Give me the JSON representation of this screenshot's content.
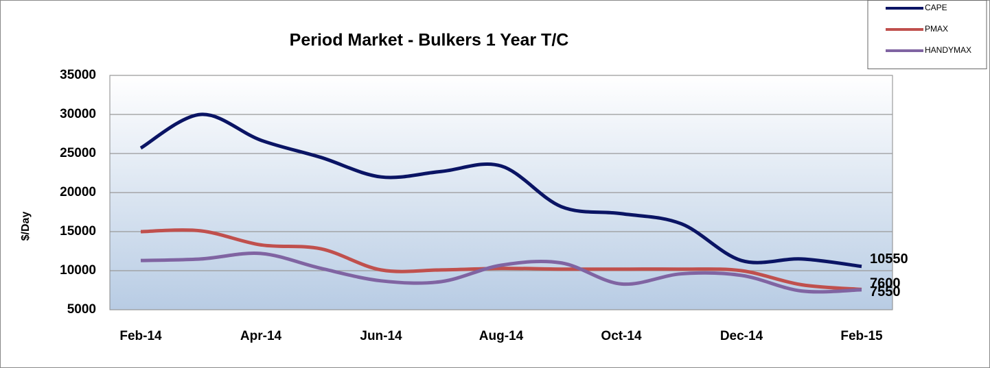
{
  "chart_data": {
    "type": "line",
    "title": "Period Market - Bulkers  1 Year T/C",
    "y_label": "$/Day",
    "categories": [
      "Feb-14",
      null,
      "Apr-14",
      null,
      "Jun-14",
      null,
      "Aug-14",
      null,
      "Oct-14",
      null,
      "Dec-14",
      null,
      "Feb-15"
    ],
    "series": [
      {
        "name": "CAPE",
        "color": "#0a1464",
        "values": [
          25700,
          30000,
          26700,
          24500,
          22000,
          22700,
          23400,
          18200,
          17300,
          16000,
          11300,
          11500,
          10550
        ]
      },
      {
        "name": "PMAX",
        "color": "#c0504d",
        "values": [
          15000,
          15100,
          13300,
          12800,
          10100,
          10100,
          10300,
          10200,
          10200,
          10200,
          10000,
          8200,
          7600
        ]
      },
      {
        "name": "HANDYMAX",
        "color": "#8064a2",
        "values": [
          11300,
          11500,
          12200,
          10300,
          8700,
          8600,
          10700,
          11000,
          8300,
          9600,
          9400,
          7400,
          7550
        ]
      }
    ],
    "ylim": [
      5000,
      35000
    ],
    "yticks": [
      5000,
      10000,
      15000,
      20000,
      25000,
      30000,
      35000
    ],
    "grid": true,
    "legend": "top-right"
  }
}
